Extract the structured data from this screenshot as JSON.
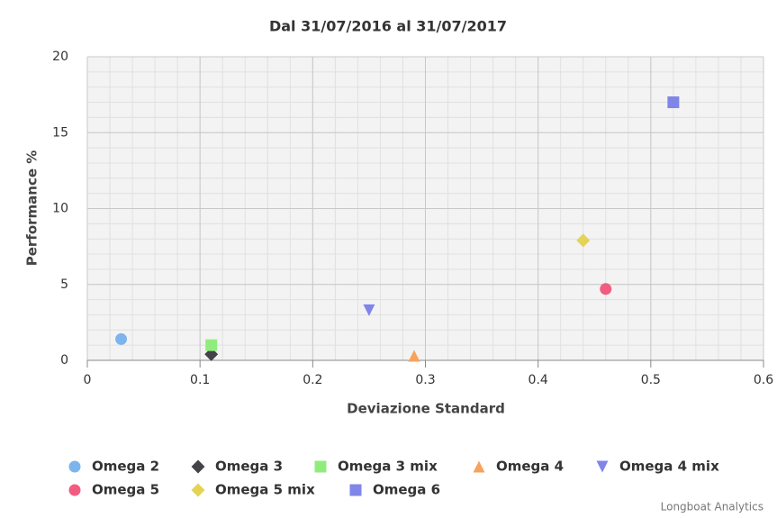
{
  "chart_data": {
    "type": "scatter",
    "title": "Dal 31/07/2016 al 31/07/2017",
    "x_label": "Deviazione Standard",
    "y_label": "Performance %",
    "xlim": [
      0,
      0.6
    ],
    "xticks": [
      0,
      0.1,
      0.2,
      0.3,
      0.4,
      0.5,
      0.6
    ],
    "ylim": [
      0,
      20
    ],
    "yticks": [
      0,
      5,
      10,
      15,
      20
    ],
    "grid": true,
    "minor_grid_step": {
      "x": 0.02,
      "y": 1
    },
    "legend": "bottom",
    "series": [
      {
        "name": "Omega 2",
        "color": "#7cb5ec",
        "marker": "circle",
        "x": [
          0.03
        ],
        "y": [
          1.4
        ]
      },
      {
        "name": "Omega 3",
        "color": "#434348",
        "marker": "diamond",
        "x": [
          0.11
        ],
        "y": [
          0.4
        ]
      },
      {
        "name": "Omega 3 mix",
        "color": "#90ed7d",
        "marker": "square",
        "x": [
          0.11
        ],
        "y": [
          1.0
        ]
      },
      {
        "name": "Omega 4",
        "color": "#f7a35c",
        "marker": "triangle",
        "x": [
          0.29
        ],
        "y": [
          0.3
        ]
      },
      {
        "name": "Omega 4 mix",
        "color": "#8085e9",
        "marker": "triangle-down",
        "x": [
          0.25
        ],
        "y": [
          3.3
        ]
      },
      {
        "name": "Omega 5",
        "color": "#f15c80",
        "marker": "circle",
        "x": [
          0.46
        ],
        "y": [
          4.7
        ]
      },
      {
        "name": "Omega 5 mix",
        "color": "#e4d354",
        "marker": "diamond",
        "x": [
          0.44
        ],
        "y": [
          7.9
        ]
      },
      {
        "name": "Omega 6",
        "color": "#8085e8",
        "marker": "square",
        "x": [
          0.52
        ],
        "y": [
          17.0
        ]
      }
    ],
    "credits": "Longboat Analytics"
  }
}
